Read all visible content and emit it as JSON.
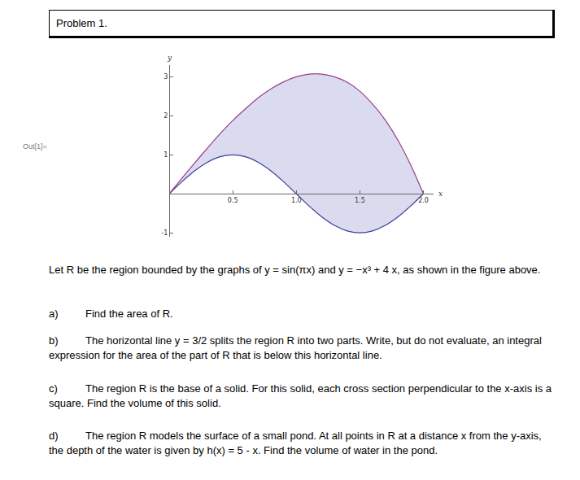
{
  "document": {
    "header": {
      "title": "Problem 1."
    },
    "output_label": "Out[1]=",
    "intro": "Let R be the region bounded by the graphs of y = sin(πx) and y = −x³ + 4 x, as shown in the figure above.",
    "parts": [
      {
        "label": "a)",
        "text": "Find the area of R."
      },
      {
        "label": "b)",
        "text": "The horizontal line y = 3/2 splits the region R into two parts. Write, but do not evaluate, an integral expression for the area of the part of R that is below this horizontal line."
      },
      {
        "label": "c)",
        "text": "The region R is the base of a solid. For this solid, each cross section perpendicular to the x-axis is a square. Find the volume of this solid."
      },
      {
        "label": "d)",
        "text": "The region R models the surface of a small pond. At all points in R at a distance x from the y-axis, the depth of the water is given by h(x) = 5 - x. Find the volume of water in the pond."
      }
    ]
  },
  "chart_data": {
    "type": "area",
    "xlabel": "x",
    "ylabel": "y",
    "x": [
      0,
      0.1,
      0.2,
      0.3,
      0.4,
      0.5,
      0.6,
      0.7,
      0.8,
      0.9,
      1.0,
      1.1,
      1.2,
      1.3,
      1.4,
      1.5,
      1.6,
      1.7,
      1.8,
      1.9,
      2.0
    ],
    "series": [
      {
        "color": "#3d3d9e",
        "values": [
          0,
          0.31,
          0.59,
          0.81,
          0.95,
          1,
          0.95,
          0.81,
          0.59,
          0.31,
          0,
          -0.31,
          -0.59,
          -0.81,
          -0.95,
          -1,
          -0.95,
          -0.81,
          -0.59,
          -0.31,
          0
        ]
      },
      {
        "color": "#9a3d86",
        "values": [
          0,
          0.4,
          0.79,
          1.17,
          1.54,
          1.88,
          2.18,
          2.46,
          2.69,
          2.87,
          3,
          3.07,
          3.07,
          3,
          2.86,
          2.63,
          2.3,
          1.89,
          1.37,
          0.74,
          0
        ]
      }
    ],
    "xlim": [
      0,
      2.08
    ],
    "ylim": [
      -1.1,
      3.3
    ],
    "xticks": [
      0.5,
      {
        "value": 1,
        "label": "1.0"
      },
      1.5,
      {
        "value": 2,
        "label": "2.0"
      }
    ],
    "yticks": [
      -1,
      1,
      2,
      3
    ],
    "grid": false
  }
}
